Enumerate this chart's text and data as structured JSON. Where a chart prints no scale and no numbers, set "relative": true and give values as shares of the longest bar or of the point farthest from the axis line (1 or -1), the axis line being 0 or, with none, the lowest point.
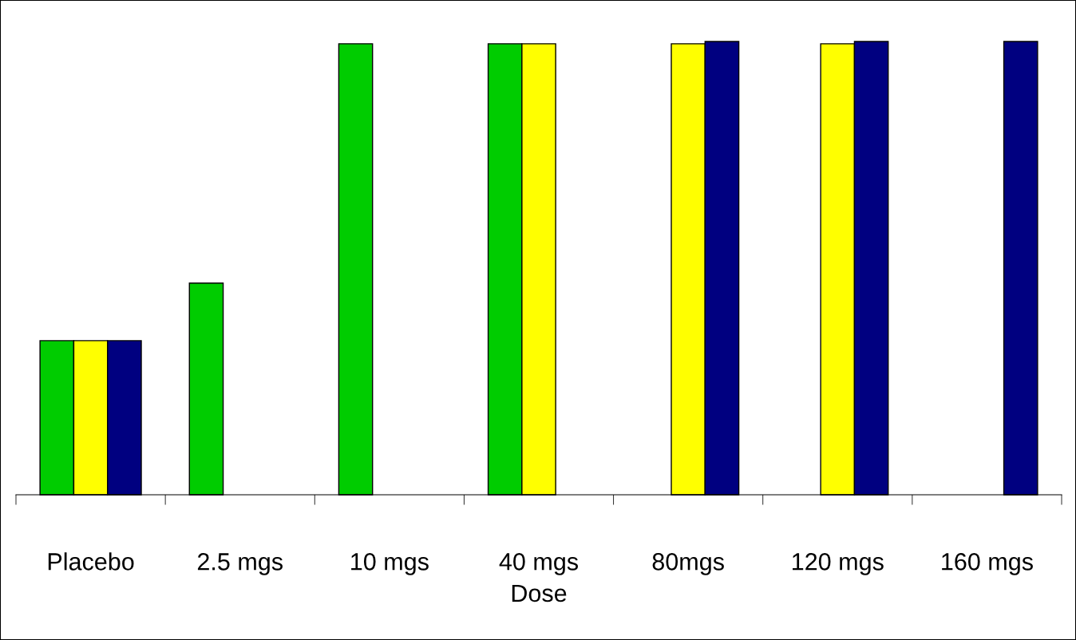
{
  "chart_data": {
    "type": "bar",
    "relative": true,
    "xlabel": "Dose",
    "categories": [
      "Placebo",
      "2.5 mgs",
      "10 mgs",
      "40 mgs",
      "80mgs",
      "120 mgs",
      "160 mgs"
    ],
    "series": [
      {
        "color": "#00cc00",
        "values": [
          0.34,
          0.467,
          0.995,
          0.995,
          null,
          null,
          null
        ]
      },
      {
        "color": "#ffff00",
        "values": [
          0.34,
          null,
          null,
          0.995,
          0.995,
          0.995,
          null
        ]
      },
      {
        "color": "#000080",
        "values": [
          0.34,
          null,
          null,
          null,
          1,
          1,
          1
        ]
      }
    ],
    "grid": false,
    "legend": false
  }
}
